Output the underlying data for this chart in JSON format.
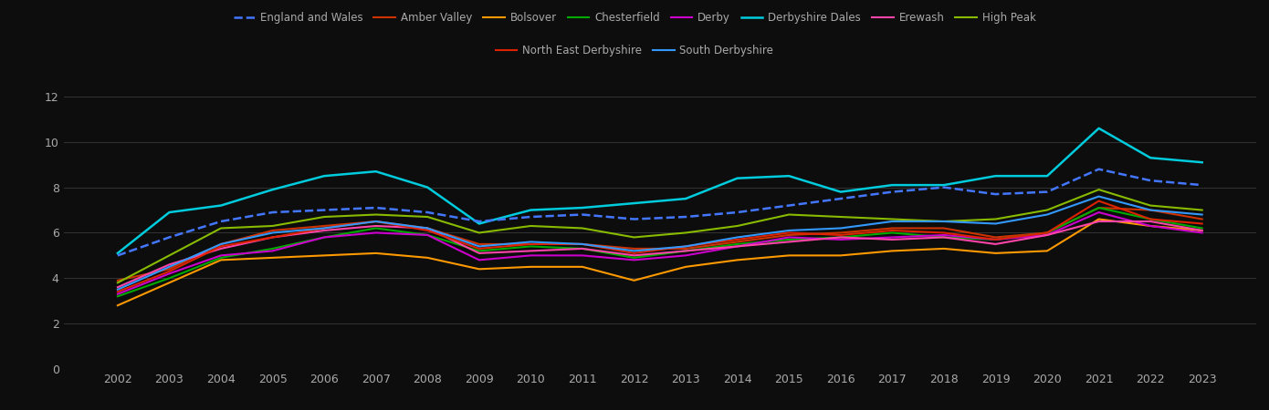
{
  "years": [
    2002,
    2003,
    2004,
    2005,
    2006,
    2007,
    2008,
    2009,
    2010,
    2011,
    2012,
    2013,
    2014,
    2015,
    2016,
    2017,
    2018,
    2019,
    2020,
    2021,
    2022,
    2023
  ],
  "series": {
    "England and Wales": [
      5.0,
      5.8,
      6.5,
      6.9,
      7.0,
      7.1,
      6.9,
      6.5,
      6.7,
      6.8,
      6.6,
      6.7,
      6.9,
      7.2,
      7.5,
      7.8,
      8.0,
      7.7,
      7.8,
      8.8,
      8.3,
      8.1
    ],
    "Amber Valley": [
      3.9,
      4.4,
      5.5,
      6.1,
      6.3,
      6.5,
      6.2,
      5.5,
      5.5,
      5.5,
      5.3,
      5.3,
      5.6,
      5.9,
      6.0,
      6.2,
      6.2,
      5.8,
      6.0,
      7.1,
      7.0,
      6.6
    ],
    "Bolsover": [
      2.8,
      3.8,
      4.8,
      4.9,
      5.0,
      5.1,
      4.9,
      4.4,
      4.5,
      4.5,
      3.9,
      4.5,
      4.8,
      5.0,
      5.0,
      5.2,
      5.3,
      5.1,
      5.2,
      6.6,
      6.3,
      6.1
    ],
    "Chesterfield": [
      3.2,
      4.0,
      4.9,
      5.3,
      5.8,
      6.2,
      5.9,
      5.2,
      5.4,
      5.3,
      4.9,
      5.2,
      5.5,
      5.7,
      5.8,
      6.0,
      5.8,
      5.7,
      6.0,
      7.1,
      6.6,
      6.2
    ],
    "Derby": [
      3.3,
      4.2,
      5.0,
      5.2,
      5.8,
      6.0,
      5.9,
      4.8,
      5.0,
      5.0,
      4.8,
      5.0,
      5.4,
      5.8,
      5.7,
      5.8,
      5.9,
      5.7,
      5.9,
      6.9,
      6.3,
      6.0
    ],
    "Derbyshire Dales": [
      5.1,
      6.9,
      7.2,
      7.9,
      8.5,
      8.7,
      8.0,
      6.4,
      7.0,
      7.1,
      7.3,
      7.5,
      8.4,
      8.5,
      7.8,
      8.1,
      8.1,
      8.5,
      8.5,
      10.6,
      9.3,
      9.1
    ],
    "Erewash": [
      3.6,
      4.6,
      5.3,
      5.8,
      6.1,
      6.3,
      6.2,
      5.1,
      5.2,
      5.3,
      5.0,
      5.2,
      5.4,
      5.6,
      5.8,
      5.7,
      5.8,
      5.5,
      5.9,
      6.5,
      6.5,
      6.1
    ],
    "High Peak": [
      3.8,
      5.0,
      6.2,
      6.3,
      6.7,
      6.8,
      6.7,
      6.0,
      6.3,
      6.2,
      5.8,
      6.0,
      6.3,
      6.8,
      6.7,
      6.6,
      6.5,
      6.6,
      7.0,
      7.9,
      7.2,
      7.0
    ],
    "North East Derbyshire": [
      3.4,
      4.3,
      5.4,
      5.8,
      6.2,
      6.5,
      6.1,
      5.3,
      5.5,
      5.5,
      5.1,
      5.4,
      5.7,
      6.0,
      5.9,
      6.1,
      6.0,
      5.7,
      6.0,
      7.4,
      6.6,
      6.4
    ],
    "South Derbyshire": [
      3.5,
      4.5,
      5.5,
      6.0,
      6.2,
      6.5,
      6.2,
      5.4,
      5.6,
      5.5,
      5.2,
      5.4,
      5.8,
      6.1,
      6.2,
      6.5,
      6.5,
      6.4,
      6.8,
      7.6,
      7.0,
      6.8
    ]
  },
  "colors": {
    "England and Wales": "#4477ff",
    "Amber Valley": "#cc3300",
    "Bolsover": "#ff9900",
    "Chesterfield": "#00aa00",
    "Derby": "#cc00cc",
    "Derbyshire Dales": "#00ccdd",
    "Erewash": "#ff44aa",
    "High Peak": "#88bb00",
    "North East Derbyshire": "#dd2200",
    "South Derbyshire": "#3399ff"
  },
  "background_color": "#0d0d0d",
  "grid_color": "#3a3a3a",
  "text_color": "#aaaaaa",
  "ylim": [
    0,
    13
  ],
  "yticks": [
    0,
    2,
    4,
    6,
    8,
    10,
    12
  ],
  "legend_row1": [
    "England and Wales",
    "Amber Valley",
    "Bolsover",
    "Chesterfield",
    "Derby",
    "Derbyshire Dales",
    "Erewash",
    "High Peak"
  ],
  "legend_row2": [
    "North East Derbyshire",
    "South Derbyshire"
  ],
  "fig_width": 13.9,
  "fig_height": 4.5,
  "dpi": 100
}
